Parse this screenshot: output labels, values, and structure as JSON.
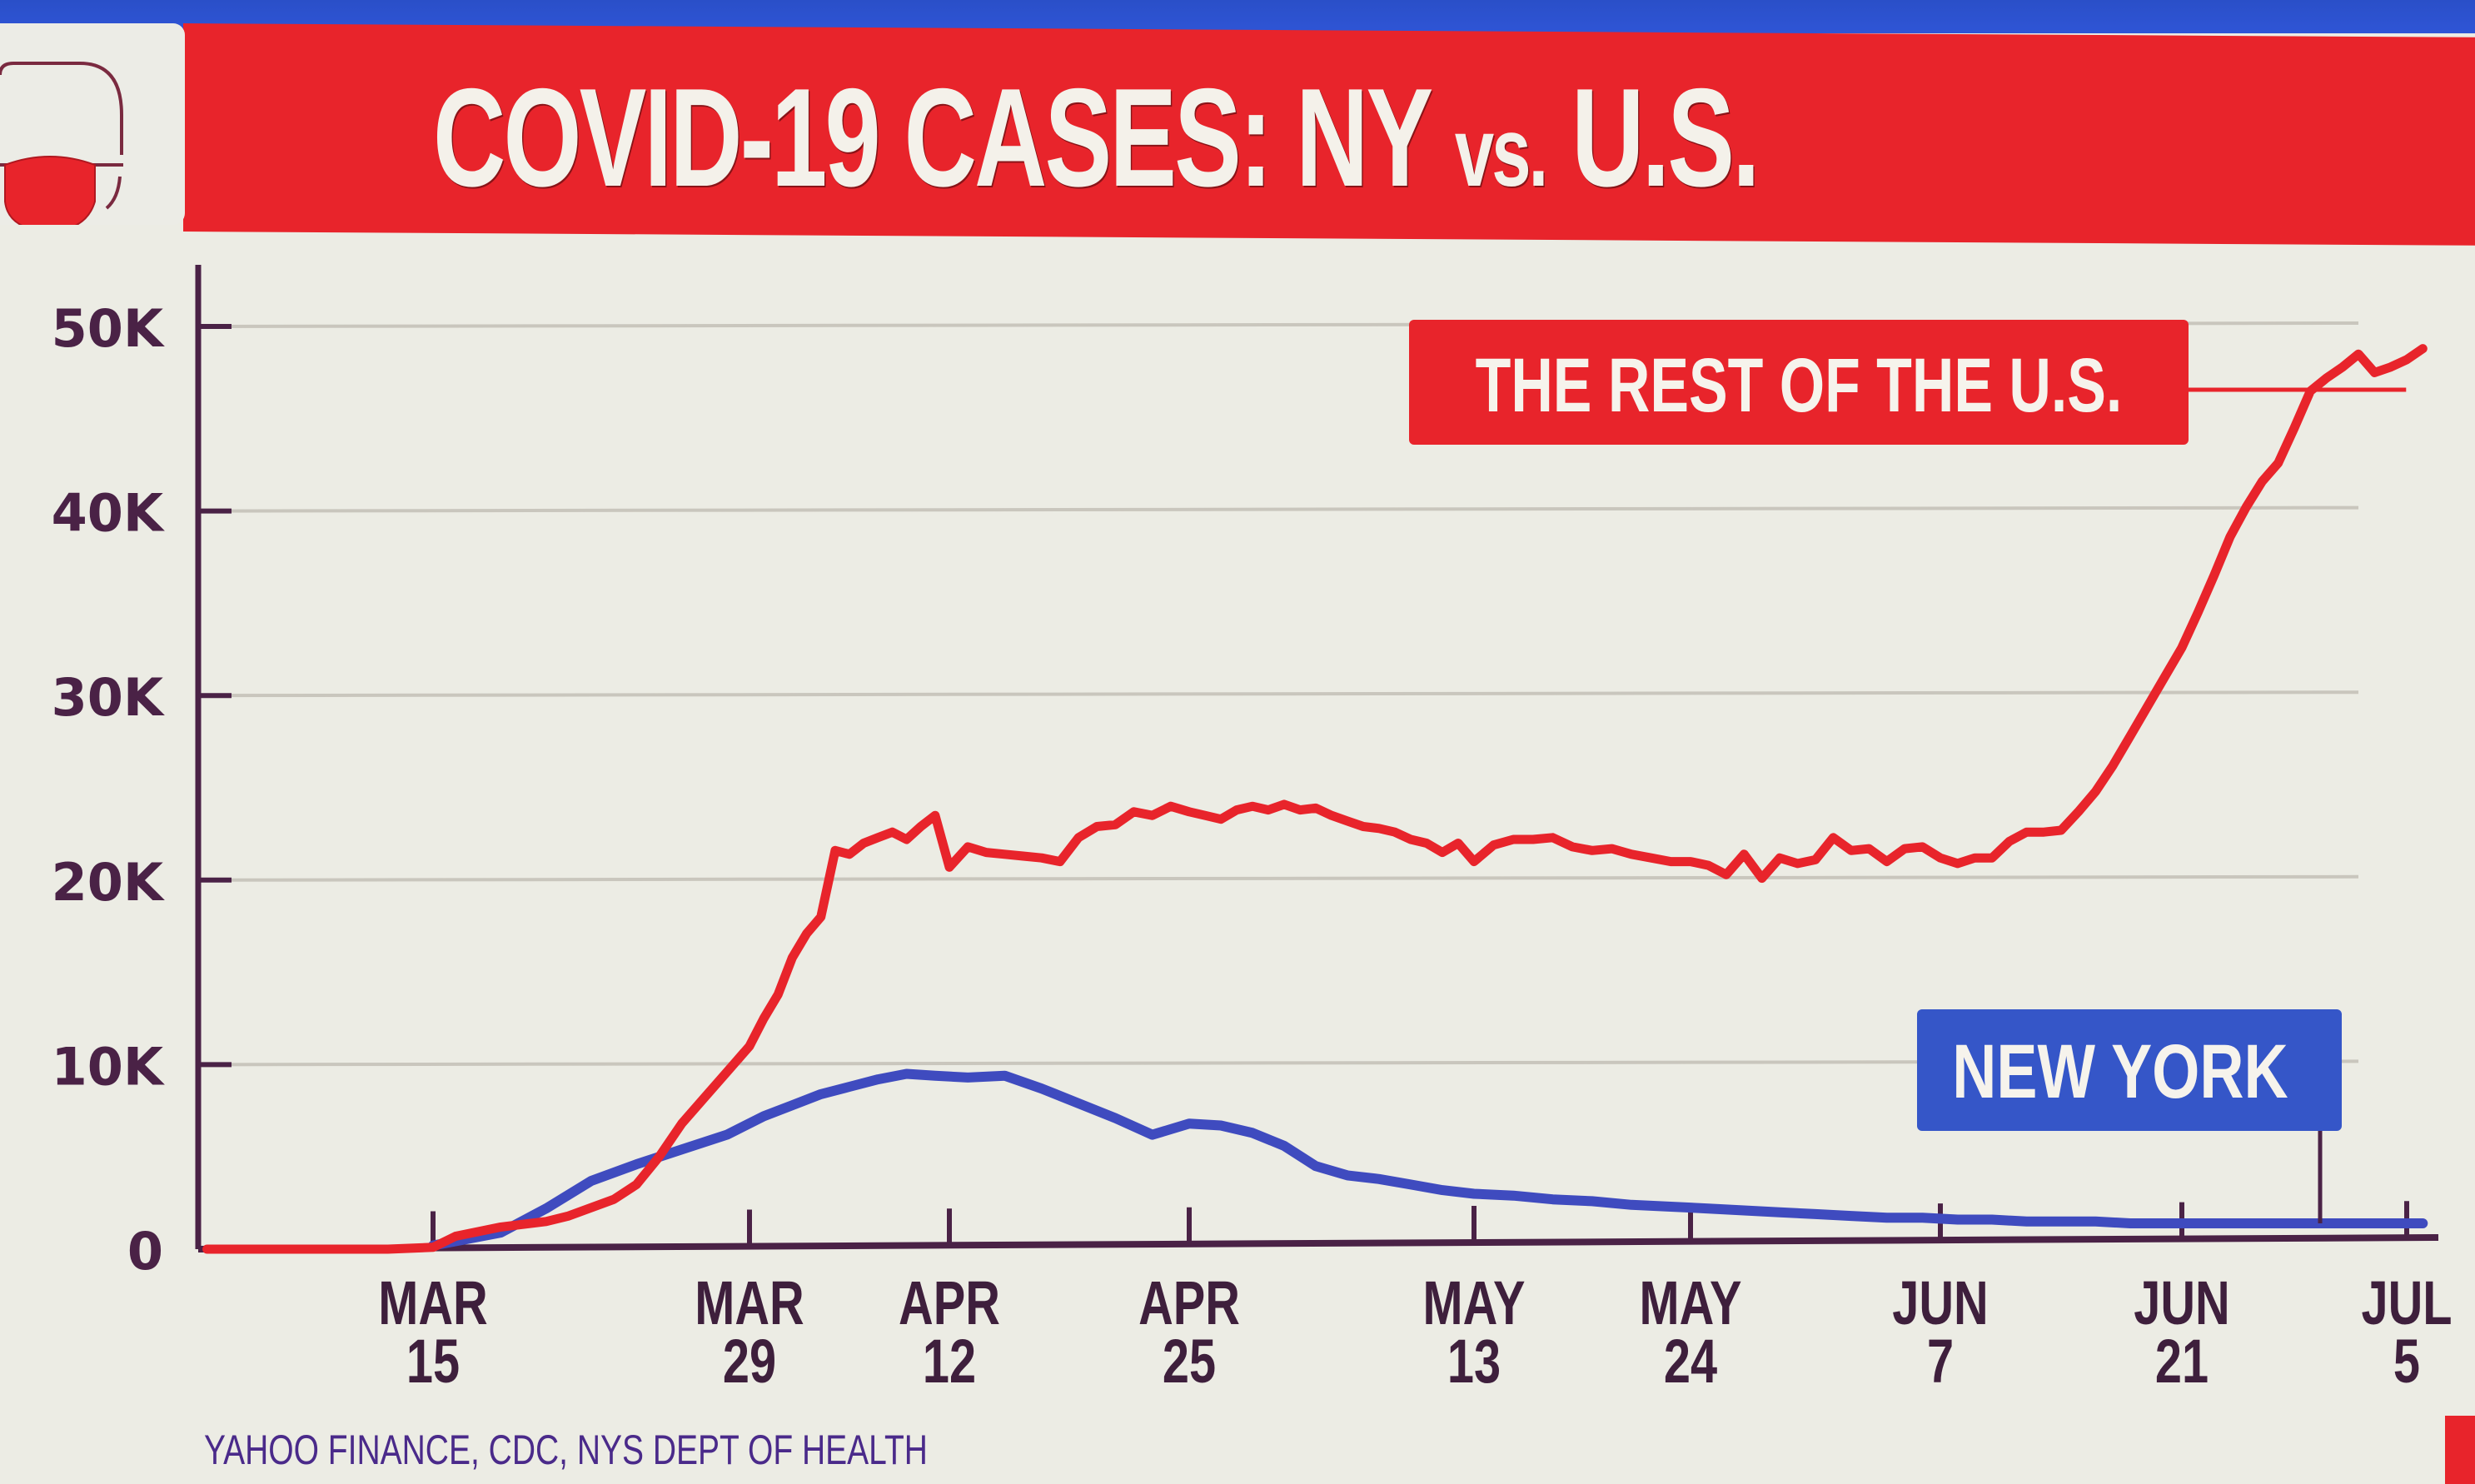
{
  "title": {
    "main": "COVID-19 CASES: NY",
    "vs": "vs.",
    "tail": "U.S."
  },
  "logo": {
    "icon": "face-mask-icon"
  },
  "source": "YAHOO FINANCE, CDC, NYS DEPT OF HEALTH",
  "colors": {
    "us_line": "#e8242b",
    "ny_line": "#3f4bbf",
    "us_label_bg": "#e8242b",
    "ny_label_bg": "#3556c8",
    "axis": "#4a2246",
    "grid": "#c9c6bd"
  },
  "chart_data": {
    "type": "line",
    "title": "COVID-19 CASES: NY vs. U.S.",
    "xlabel": "",
    "ylabel": "",
    "x_unit": "days since Mar 1, 2020",
    "xlim": [
      0,
      127
    ],
    "ylim": [
      0,
      50000
    ],
    "grid": true,
    "yticks": [
      {
        "value": 0,
        "label": "0"
      },
      {
        "value": 10000,
        "label": "10K"
      },
      {
        "value": 20000,
        "label": "20K"
      },
      {
        "value": 30000,
        "label": "30K"
      },
      {
        "value": 40000,
        "label": "40K"
      },
      {
        "value": 50000,
        "label": "50K"
      }
    ],
    "xticks": [
      {
        "value": 14,
        "line1": "MAR",
        "line2": "15"
      },
      {
        "value": 28,
        "line1": "MAR",
        "line2": "29"
      },
      {
        "value": 42,
        "line1": "APR",
        "line2": "12"
      },
      {
        "value": 55,
        "line1": "APR",
        "line2": "25"
      },
      {
        "value": 73,
        "line1": "MAY",
        "line2": "13"
      },
      {
        "value": 84,
        "line1": "MAY",
        "line2": "24"
      },
      {
        "value": 98,
        "line1": "JUN",
        "line2": "7"
      },
      {
        "value": 112,
        "line1": "JUN",
        "line2": "21"
      },
      {
        "value": 126,
        "line1": "JUL",
        "line2": "5"
      }
    ],
    "series": [
      {
        "name": "THE REST OF THE U.S.",
        "label": "THE REST OF THE U.S.",
        "color": "#e8242b",
        "x": [
          4,
          8,
          12,
          14,
          15,
          17,
          19,
          20,
          22,
          23,
          24,
          25,
          26,
          27,
          28,
          29,
          30,
          31,
          32,
          33,
          34,
          35,
          36,
          37,
          38,
          39,
          40,
          41,
          42,
          43,
          44,
          45,
          46,
          47,
          48,
          49,
          50,
          51,
          52,
          53,
          54,
          55,
          56,
          57,
          58,
          59,
          60,
          61,
          62,
          63,
          64,
          65,
          66,
          67,
          68,
          69,
          70,
          71,
          72,
          73,
          74,
          75,
          76,
          77,
          78,
          79,
          80,
          81,
          82,
          83,
          84,
          85,
          86,
          87,
          88,
          89,
          90,
          91,
          92,
          93,
          94,
          95,
          96,
          97,
          98,
          99,
          100,
          101,
          102,
          103,
          104,
          105,
          106,
          107,
          108,
          109,
          110,
          111,
          112,
          113,
          114,
          115,
          116,
          117,
          118,
          119,
          120,
          121,
          122,
          123,
          124,
          125,
          126,
          127
        ],
        "values": [
          0,
          0,
          0,
          100,
          700,
          1200,
          1500,
          1800,
          2700,
          3500,
          5000,
          6800,
          8200,
          9600,
          11000,
          12500,
          13800,
          15800,
          17100,
          18000,
          21600,
          21400,
          22000,
          22300,
          22600,
          22200,
          22900,
          23500,
          20700,
          21800,
          21500,
          21400,
          21300,
          21200,
          21000,
          22300,
          22900,
          23000,
          23700,
          23500,
          24000,
          23700,
          23500,
          23300,
          23800,
          24000,
          23800,
          24100,
          23800,
          23900,
          23500,
          23200,
          22900,
          22800,
          22600,
          22200,
          22000,
          21500,
          22000,
          21000,
          21900,
          22200,
          22200,
          22300,
          21800,
          21600,
          21700,
          21400,
          21200,
          21000,
          21000,
          20800,
          20300,
          21400,
          20100,
          21200,
          20900,
          21100,
          22300,
          21600,
          21700,
          21000,
          21700,
          21800,
          21200,
          20900,
          21200,
          21200,
          22100,
          22600,
          22600,
          22700,
          23700,
          24800,
          26200,
          27800,
          29400,
          31000,
          32600,
          34500,
          36500,
          38600,
          40200,
          41600,
          42600,
          44500,
          46500,
          47200,
          47800,
          48500,
          47500,
          47800,
          48200,
          48800
        ],
        "x_note": "approximate reading"
      },
      {
        "name": "NEW YORK",
        "label": "NEW YORK",
        "color": "#3f4bbf",
        "x": [
          14,
          17,
          19,
          21,
          23,
          25,
          27,
          29,
          31,
          33,
          35,
          37,
          39,
          41,
          43,
          45,
          47,
          49,
          51,
          53,
          55,
          57,
          59,
          61,
          63,
          65,
          67,
          69,
          71,
          73,
          75,
          77,
          79,
          81,
          83,
          85,
          87,
          89,
          91,
          93,
          95,
          97,
          99,
          101,
          103,
          105,
          107,
          109,
          111,
          113,
          115,
          117,
          119,
          121,
          123,
          125,
          127
        ],
        "values": [
          200,
          900,
          2200,
          3700,
          4600,
          5400,
          6200,
          7200,
          7800,
          8400,
          8800,
          9200,
          9500,
          9400,
          9300,
          9400,
          8700,
          7900,
          7100,
          6200,
          6800,
          6700,
          6300,
          5600,
          4500,
          4000,
          3800,
          3500,
          3200,
          3000,
          2900,
          2700,
          2600,
          2400,
          2300,
          2200,
          2100,
          2000,
          1900,
          1800,
          1700,
          1700,
          1600,
          1600,
          1500,
          1500,
          1500,
          1400,
          1400,
          1400,
          1400,
          1400,
          1400,
          1400,
          1400,
          1400,
          1400
        ]
      }
    ],
    "annotations": [
      {
        "text": "THE REST OF THE U.S.",
        "series": "THE REST OF THE U.S."
      },
      {
        "text": "NEW YORK",
        "series": "NEW YORK"
      }
    ],
    "legend": "inline-labels"
  }
}
